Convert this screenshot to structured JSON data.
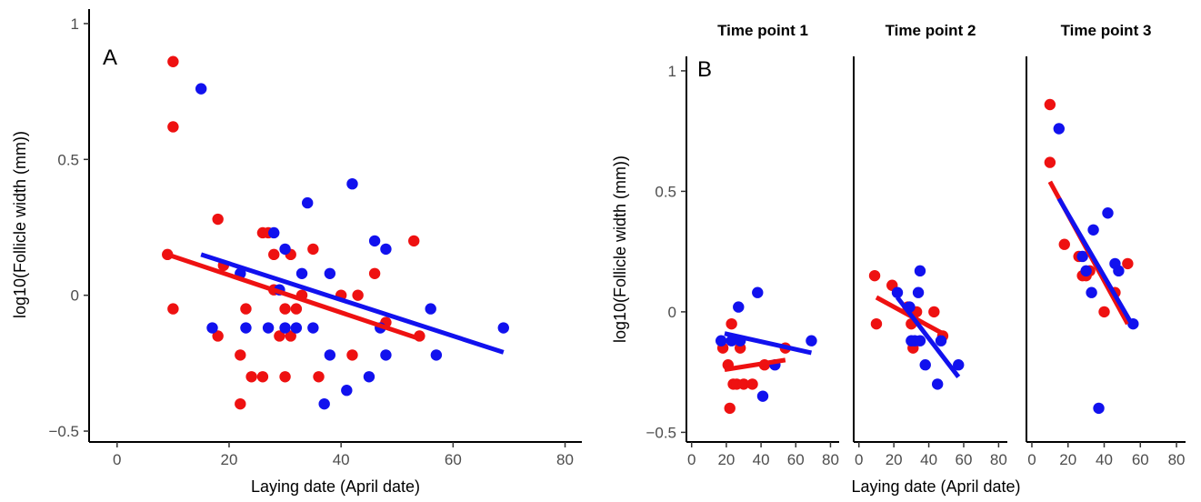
{
  "colors": {
    "red": "#ee1111",
    "blue": "#1111ee",
    "axis": "#000000"
  },
  "chart_data": [
    {
      "type": "scatter",
      "panel_label": "A",
      "xlabel": "Laying date (April date)",
      "ylabel": "log10(Follicle width (mm))",
      "xlim": [
        -5,
        83
      ],
      "ylim": [
        -0.54,
        1.06
      ],
      "x_ticks": [
        0,
        20,
        40,
        60,
        80
      ],
      "y_ticks": [
        -0.5,
        0,
        0.5,
        1
      ],
      "y_tick_labels": [
        "−0.5",
        "0",
        "0.5",
        "1"
      ],
      "grid": false,
      "series": [
        {
          "color": "red",
          "points": [
            [
              10,
              0.86
            ],
            [
              10,
              0.62
            ],
            [
              9,
              0.15
            ],
            [
              10,
              -0.05
            ],
            [
              18,
              0.28
            ],
            [
              18,
              -0.15
            ],
            [
              19,
              0.11
            ],
            [
              22,
              -0.22
            ],
            [
              22,
              -0.4
            ],
            [
              23,
              -0.05
            ],
            [
              24,
              -0.3
            ],
            [
              26,
              0.23
            ],
            [
              26,
              -0.3
            ],
            [
              27,
              0.23
            ],
            [
              28,
              0.15
            ],
            [
              28,
              0.02
            ],
            [
              29,
              -0.15
            ],
            [
              30,
              -0.05
            ],
            [
              30,
              -0.3
            ],
            [
              31,
              0.15
            ],
            [
              31,
              -0.15
            ],
            [
              32,
              -0.05
            ],
            [
              33,
              0
            ],
            [
              35,
              0.17
            ],
            [
              36,
              -0.3
            ],
            [
              40,
              0
            ],
            [
              42,
              -0.22
            ],
            [
              43,
              0
            ],
            [
              46,
              0.08
            ],
            [
              48,
              -0.1
            ],
            [
              53,
              0.2
            ],
            [
              54,
              -0.15
            ]
          ],
          "trend": [
            [
              9,
              0.15
            ],
            [
              54,
              -0.16
            ]
          ]
        },
        {
          "color": "blue",
          "points": [
            [
              15,
              0.76
            ],
            [
              17,
              -0.12
            ],
            [
              22,
              0.08
            ],
            [
              23,
              -0.12
            ],
            [
              27,
              -0.12
            ],
            [
              28,
              0.23
            ],
            [
              29,
              0.02
            ],
            [
              30,
              0.17
            ],
            [
              30,
              -0.12
            ],
            [
              32,
              -0.12
            ],
            [
              33,
              0.08
            ],
            [
              34,
              0.34
            ],
            [
              35,
              -0.12
            ],
            [
              37,
              -0.4
            ],
            [
              38,
              0.08
            ],
            [
              38,
              -0.22
            ],
            [
              41,
              -0.35
            ],
            [
              42,
              0.41
            ],
            [
              45,
              -0.3
            ],
            [
              46,
              0.2
            ],
            [
              47,
              -0.12
            ],
            [
              48,
              0.17
            ],
            [
              48,
              -0.22
            ],
            [
              56,
              -0.05
            ],
            [
              57,
              -0.22
            ],
            [
              69,
              -0.12
            ]
          ],
          "trend": [
            [
              15,
              0.15
            ],
            [
              69,
              -0.21
            ]
          ]
        }
      ]
    },
    {
      "type": "scatter",
      "panel_label": "B",
      "xlabel": "Laying date (April date)",
      "ylabel": "log10(Follicle width (mm))",
      "ylim": [
        -0.54,
        1.06
      ],
      "y_ticks": [
        -0.5,
        0,
        0.5,
        1
      ],
      "y_tick_labels": [
        "−0.5",
        "0",
        "0.5",
        "1"
      ],
      "grid": false,
      "facets": [
        {
          "title": "Time point 1",
          "xlim": [
            -3,
            85
          ],
          "x_ticks": [
            0,
            20,
            40,
            60,
            80
          ],
          "series": [
            {
              "color": "red",
              "points": [
                [
                  18,
                  -0.15
                ],
                [
                  21,
                  -0.22
                ],
                [
                  22,
                  -0.4
                ],
                [
                  23,
                  -0.05
                ],
                [
                  24,
                  -0.3
                ],
                [
                  26,
                  -0.3
                ],
                [
                  28,
                  -0.15
                ],
                [
                  30,
                  -0.3
                ],
                [
                  35,
                  -0.3
                ],
                [
                  42,
                  -0.22
                ],
                [
                  54,
                  -0.15
                ]
              ],
              "trend": [
                [
                  19,
                  -0.24
                ],
                [
                  54,
                  -0.2
                ]
              ]
            },
            {
              "color": "blue",
              "points": [
                [
                  17,
                  -0.12
                ],
                [
                  23,
                  -0.12
                ],
                [
                  27,
                  0.02
                ],
                [
                  28,
                  -0.12
                ],
                [
                  38,
                  0.08
                ],
                [
                  41,
                  -0.35
                ],
                [
                  48,
                  -0.22
                ],
                [
                  69,
                  -0.12
                ]
              ],
              "trend": [
                [
                  19,
                  -0.09
                ],
                [
                  69,
                  -0.17
                ]
              ]
            }
          ]
        },
        {
          "title": "Time point 2",
          "xlim": [
            -3,
            85
          ],
          "x_ticks": [
            0,
            20,
            40,
            60,
            80
          ],
          "series": [
            {
              "color": "red",
              "points": [
                [
                  9,
                  0.15
                ],
                [
                  10,
                  -0.05
                ],
                [
                  19,
                  0.11
                ],
                [
                  28,
                  0.02
                ],
                [
                  30,
                  -0.05
                ],
                [
                  31,
                  -0.15
                ],
                [
                  33,
                  0
                ],
                [
                  43,
                  0
                ],
                [
                  48,
                  -0.1
                ]
              ],
              "trend": [
                [
                  10,
                  0.06
                ],
                [
                  48,
                  -0.09
                ]
              ]
            },
            {
              "color": "blue",
              "points": [
                [
                  22,
                  0.08
                ],
                [
                  29,
                  0.02
                ],
                [
                  30,
                  -0.12
                ],
                [
                  32,
                  -0.12
                ],
                [
                  34,
                  0.08
                ],
                [
                  35,
                  0.17
                ],
                [
                  35,
                  -0.12
                ],
                [
                  38,
                  -0.22
                ],
                [
                  45,
                  -0.3
                ],
                [
                  47,
                  -0.12
                ],
                [
                  57,
                  -0.22
                ]
              ],
              "trend": [
                [
                  22,
                  0.06
                ],
                [
                  57,
                  -0.27
                ]
              ]
            }
          ]
        },
        {
          "title": "Time point 3",
          "xlim": [
            -3,
            85
          ],
          "x_ticks": [
            0,
            20,
            40,
            60,
            80
          ],
          "series": [
            {
              "color": "red",
              "points": [
                [
                  10,
                  0.86
                ],
                [
                  10,
                  0.62
                ],
                [
                  18,
                  0.28
                ],
                [
                  26,
                  0.23
                ],
                [
                  28,
                  0.15
                ],
                [
                  30,
                  0.15
                ],
                [
                  32,
                  0.17
                ],
                [
                  40,
                  0
                ],
                [
                  46,
                  0.08
                ],
                [
                  53,
                  0.2
                ]
              ],
              "trend": [
                [
                  10,
                  0.54
                ],
                [
                  53,
                  -0.05
                ]
              ]
            },
            {
              "color": "blue",
              "points": [
                [
                  15,
                  0.76
                ],
                [
                  28,
                  0.23
                ],
                [
                  30,
                  0.17
                ],
                [
                  33,
                  0.08
                ],
                [
                  34,
                  0.34
                ],
                [
                  37,
                  -0.4
                ],
                [
                  42,
                  0.41
                ],
                [
                  46,
                  0.2
                ],
                [
                  48,
                  0.17
                ],
                [
                  56,
                  -0.05
                ]
              ],
              "trend": [
                [
                  15,
                  0.47
                ],
                [
                  56,
                  -0.06
                ]
              ]
            }
          ]
        }
      ]
    }
  ]
}
